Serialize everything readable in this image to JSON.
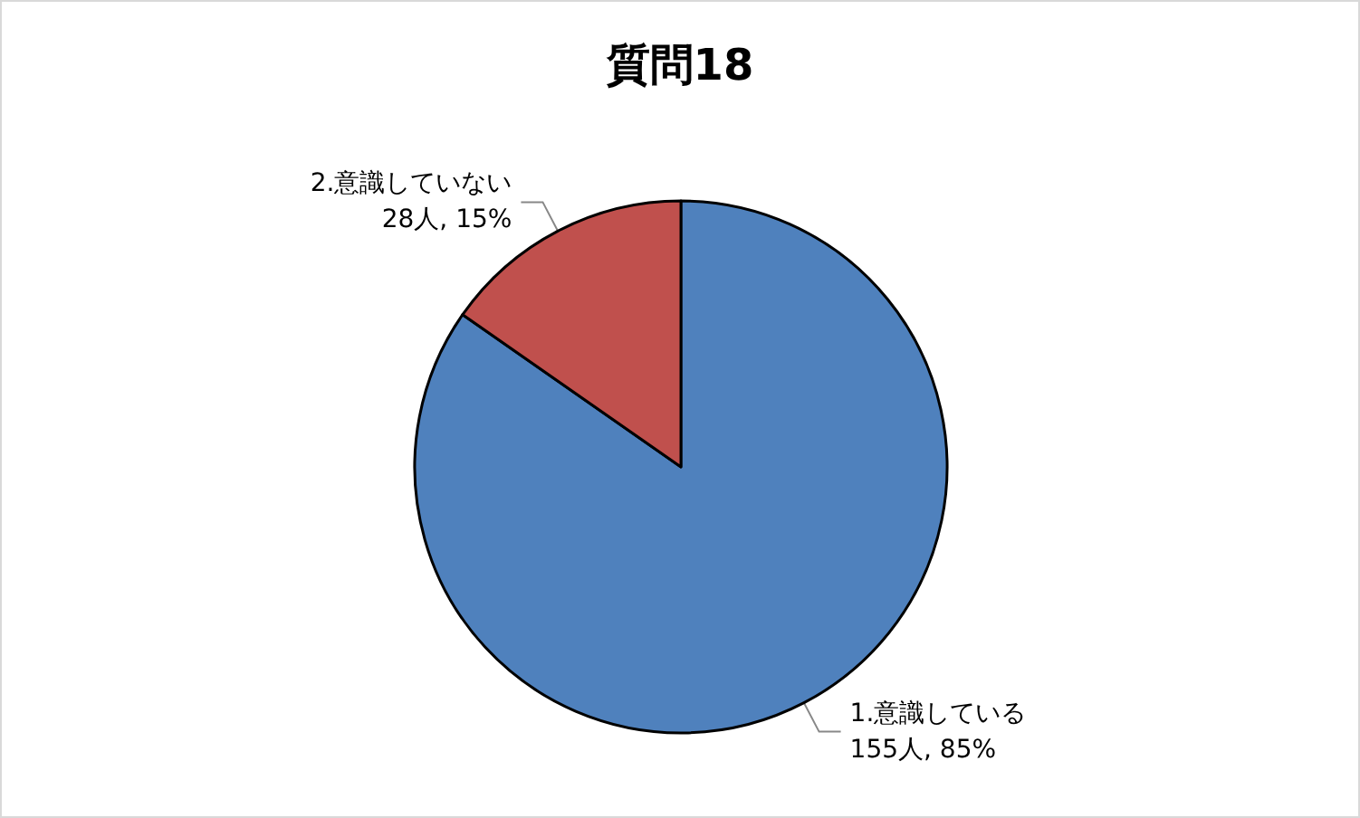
{
  "chart_data": {
    "type": "pie",
    "title": "質問18",
    "categories": [
      "1.意識している",
      "2.意識していない"
    ],
    "values": [
      155,
      28
    ],
    "colors": [
      "#4f81bd",
      "#c0504d"
    ],
    "value_labels": [
      "155人, 85%",
      "28人, 15%"
    ]
  }
}
